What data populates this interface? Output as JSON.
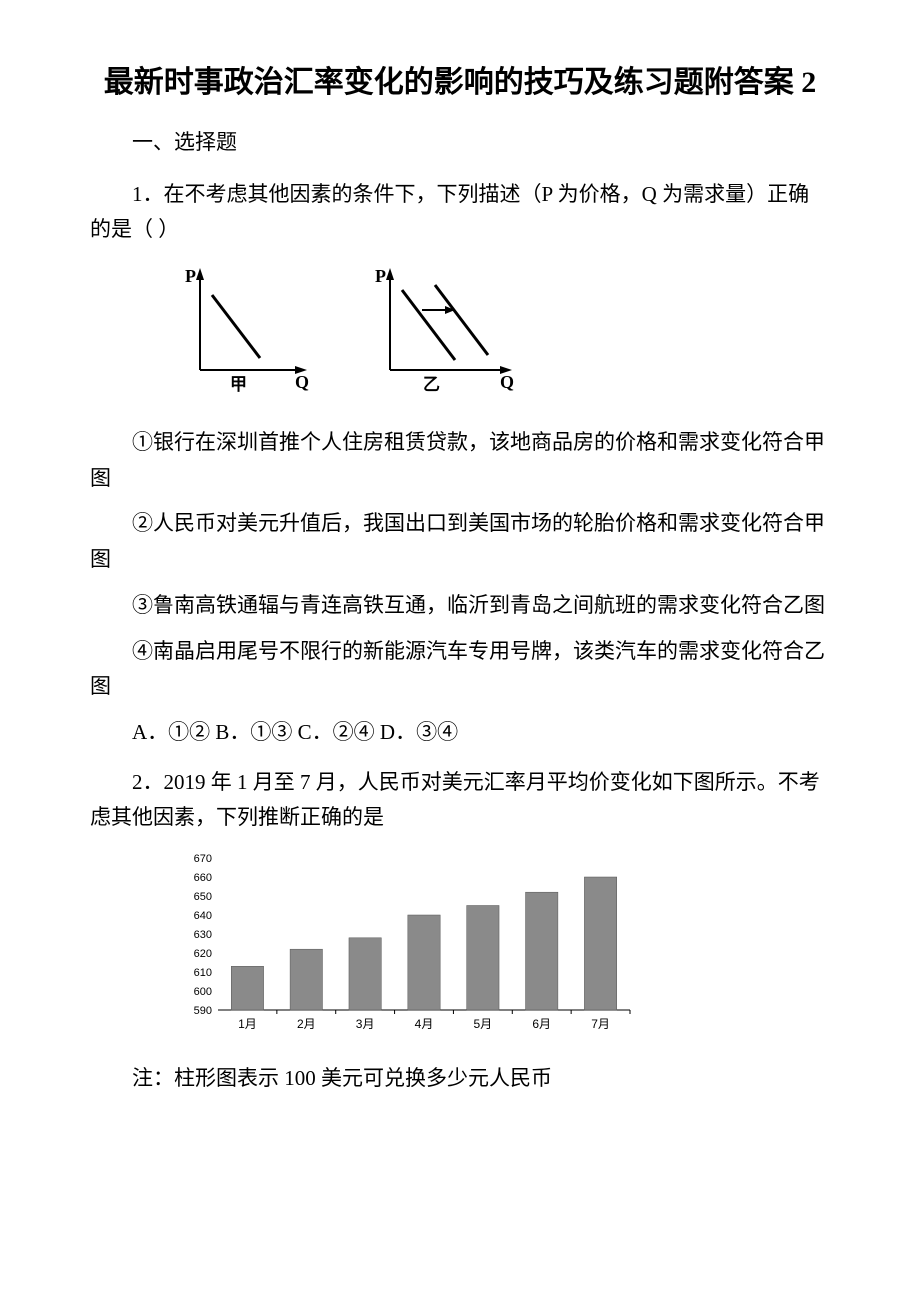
{
  "title": "最新时事政治汇率变化的影响的技巧及练习题附答案 2",
  "section_header": "一、选择题",
  "q1": {
    "stem": "1．在不考虑其他因素的条件下，下列描述（P 为价格，Q 为需求量）正确的是（ ）",
    "graph1": {
      "xlabel": "甲",
      "axisQ": "Q",
      "axisP": "P"
    },
    "graph2": {
      "xlabel": "乙",
      "axisQ": "Q",
      "axisP": "P"
    },
    "opt1": "①银行在深圳首推个人住房租赁贷款，该地商品房的价格和需求变化符合甲图",
    "opt2": "②人民币对美元升值后，我国出口到美国市场的轮胎价格和需求变化符合甲图",
    "opt3": "③鲁南高铁通辐与青连高铁互通，临沂到青岛之间航班的需求变化符合乙图",
    "opt4": "④南晶启用尾号不限行的新能源汽车专用号牌，该类汽车的需求变化符合乙图",
    "answers": "A．①② B．①③ C．②④ D．③④"
  },
  "q2": {
    "stem": "2．2019 年 1 月至 7 月，人民币对美元汇率月平均价变化如下图所示。不考虑其他因素，下列推断正确的是",
    "note": "注：柱形图表示 100 美元可兑换多少元人民币",
    "chart": {
      "type": "bar",
      "categories": [
        "1月",
        "2月",
        "3月",
        "4月",
        "5月",
        "6月",
        "7月"
      ],
      "values": [
        613,
        622,
        628,
        640,
        645,
        652,
        660
      ],
      "bar_color": "#8a8a8a",
      "yticks": [
        590,
        600,
        610,
        620,
        630,
        640,
        650,
        660,
        670
      ],
      "ylim": [
        590,
        670
      ],
      "background_color": "#ffffff",
      "grid_color": "#cccccc",
      "axis_color": "#000000",
      "label_fontsize": 11,
      "bar_width": 0.55
    }
  }
}
